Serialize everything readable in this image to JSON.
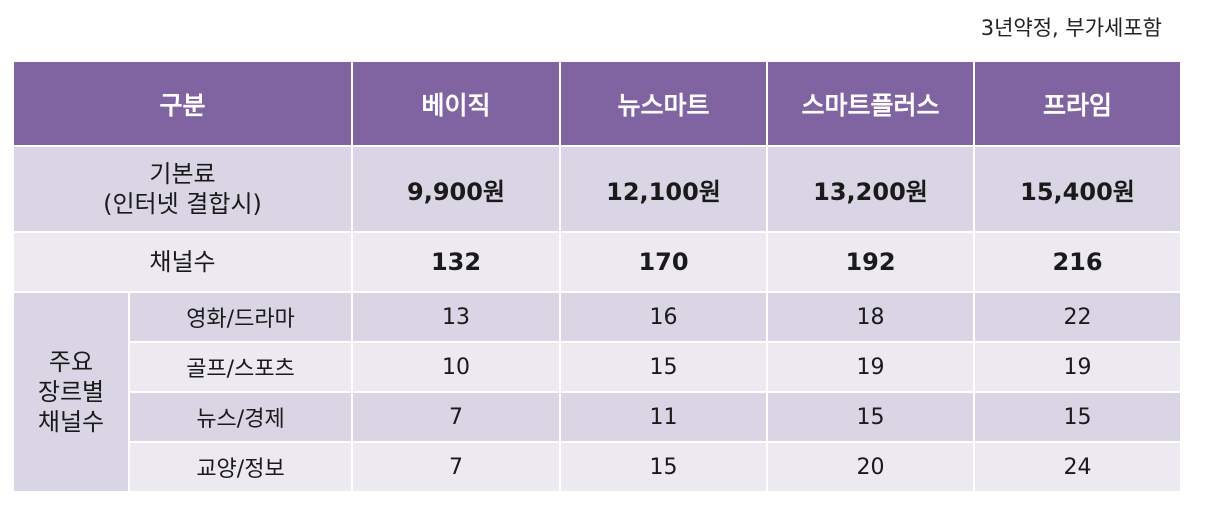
{
  "note": "3년약정, 부가세포함",
  "header": [
    "구분",
    "베이직",
    "뉴스마트",
    "스마트플러스",
    "프라임"
  ],
  "base_fee": {
    "label_line1": "기본료",
    "label_line2": "(인터넷 결합시)",
    "values": [
      "9,900원",
      "12,100원",
      "13,200원",
      "15,400원"
    ]
  },
  "channels": {
    "label": "채널수",
    "values": [
      "132",
      "170",
      "192",
      "216"
    ]
  },
  "genre_group": {
    "line1": "주요",
    "line2": "장르별",
    "line3": "채널수"
  },
  "genres": [
    {
      "label": "영화/드라마",
      "values": [
        "13",
        "16",
        "18",
        "22"
      ]
    },
    {
      "label": "골프/스포츠",
      "values": [
        "10",
        "15",
        "19",
        "19"
      ]
    },
    {
      "label": "뉴스/경제",
      "values": [
        "7",
        "11",
        "15",
        "15"
      ]
    },
    {
      "label": "교양/정보",
      "values": [
        "7",
        "15",
        "20",
        "24"
      ]
    }
  ]
}
